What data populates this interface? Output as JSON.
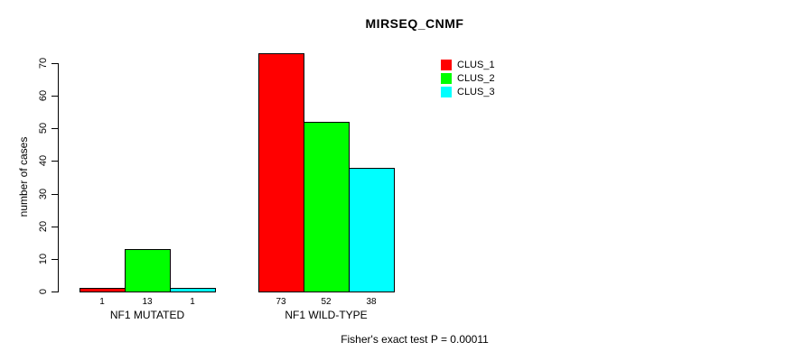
{
  "chart_data": {
    "type": "bar",
    "title": "MIRSEQ_CNMF",
    "ylabel": "number of cases",
    "xlabel": "",
    "categories": [
      "NF1 MUTATED",
      "NF1 WILD-TYPE"
    ],
    "series": [
      {
        "name": "CLUS_1",
        "color": "#ff0000",
        "values": [
          1,
          73
        ]
      },
      {
        "name": "CLUS_2",
        "color": "#00ff00",
        "values": [
          13,
          52
        ]
      },
      {
        "name": "CLUS_3",
        "color": "#00ffff",
        "values": [
          1,
          38
        ]
      }
    ],
    "ylim": [
      0,
      70
    ],
    "yticks": [
      0,
      10,
      20,
      30,
      40,
      50,
      60,
      70
    ],
    "bar_value_labels": [
      [
        "1",
        "13",
        "1"
      ],
      [
        "73",
        "52",
        "38"
      ]
    ],
    "grid": false,
    "legend_position": "top-right",
    "legend_entries": [
      "CLUS_1",
      "CLUS_2",
      "CLUS_3"
    ],
    "footnote": "Fisher's exact test P = 0.00011"
  }
}
